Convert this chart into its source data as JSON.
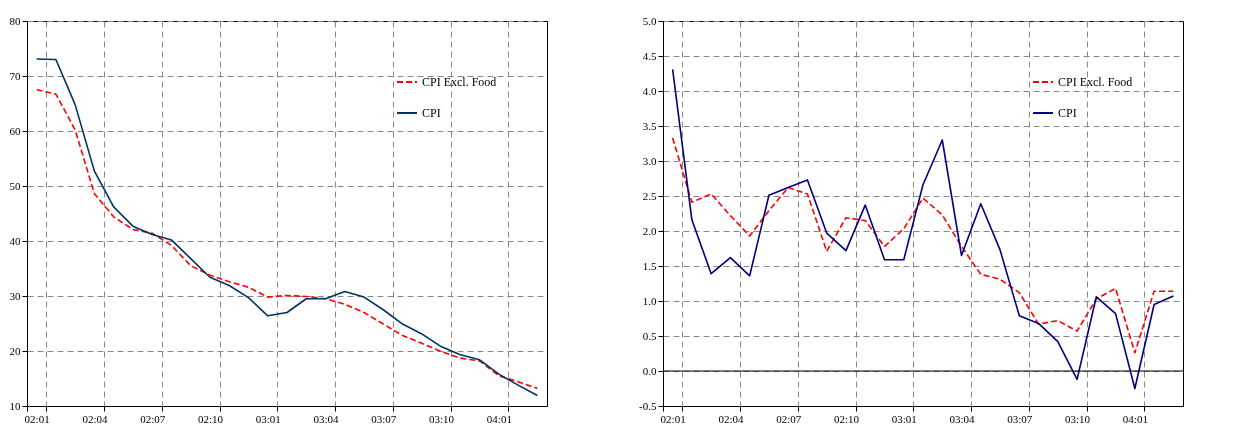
{
  "chart_data": [
    {
      "type": "line",
      "categories": [
        "02:01",
        null,
        null,
        "02:04",
        null,
        null,
        "02:07",
        null,
        null,
        "02:10",
        null,
        null,
        "03:01",
        null,
        null,
        "03:04",
        null,
        null,
        "03:07",
        null,
        null,
        "03:10",
        null,
        null,
        "04:01",
        null,
        null
      ],
      "ylim": [
        10,
        80
      ],
      "yticks": [
        10,
        20,
        30,
        40,
        50,
        60,
        70,
        80
      ],
      "grid": true,
      "legend": "top right",
      "series": [
        {
          "name": "CPI Excl. Food",
          "color": "#ff0000",
          "line_style": "dashed",
          "values": [
            67.5,
            66.7,
            60.2,
            48.6,
            44.4,
            42.1,
            41.4,
            39.2,
            35.5,
            33.8,
            32.6,
            31.6,
            29.8,
            30.1,
            29.9,
            29.5,
            28.5,
            27.0,
            24.9,
            22.8,
            21.4,
            19.9,
            18.7,
            18.2,
            15.5,
            14.4,
            13.2
          ]
        },
        {
          "name": "CPI",
          "color": "#003366",
          "line_style": "solid",
          "values": [
            73.1,
            73.0,
            64.8,
            52.7,
            46.2,
            42.7,
            41.2,
            40.2,
            36.8,
            33.4,
            31.9,
            29.7,
            26.4,
            27.0,
            29.5,
            29.5,
            30.8,
            29.8,
            27.5,
            24.9,
            23.1,
            20.8,
            19.3,
            18.4,
            15.8,
            13.8,
            11.9
          ]
        }
      ]
    },
    {
      "type": "line",
      "categories": [
        "02:01",
        null,
        null,
        "02:04",
        null,
        null,
        "02:07",
        null,
        null,
        "02:10",
        null,
        null,
        "03:01",
        null,
        null,
        "03:04",
        null,
        null,
        "03:07",
        null,
        null,
        "03:10",
        null,
        null,
        "04:01",
        null,
        null
      ],
      "ylim": [
        -0.5,
        5.0
      ],
      "yticks": [
        {
          "value": -0.5,
          "label": "-0.5"
        },
        {
          "value": 0,
          "label": "0.0"
        },
        0.5,
        {
          "value": 1,
          "label": "1.0"
        },
        1.5,
        {
          "value": 2,
          "label": "2.0"
        },
        2.5,
        {
          "value": 3,
          "label": "3.0"
        },
        3.5,
        {
          "value": 4,
          "label": "4.0"
        },
        4.5,
        {
          "value": 5,
          "label": "5.0"
        }
      ],
      "grid": true,
      "legend": "top right",
      "ref_lines": [
        {
          "axis": "y",
          "value": 0,
          "label": null,
          "color": "#000000",
          "line_style": "solid"
        }
      ],
      "series": [
        {
          "name": "CPI Excl. Food",
          "color": "#ff0000",
          "line_style": "dashed",
          "values": [
            3.33,
            2.41,
            2.53,
            2.22,
            1.93,
            2.29,
            2.62,
            2.53,
            1.71,
            2.19,
            2.15,
            1.78,
            2.03,
            2.47,
            2.23,
            1.78,
            1.38,
            1.31,
            1.12,
            0.67,
            0.72,
            0.57,
            1.03,
            1.18,
            0.26,
            1.14,
            1.14
          ]
        },
        {
          "name": "CPI",
          "color": "#000080",
          "line_style": "solid",
          "values": [
            4.31,
            2.16,
            1.39,
            1.62,
            1.36,
            2.51,
            2.62,
            2.73,
            1.97,
            1.72,
            2.37,
            1.59,
            1.59,
            2.66,
            3.3,
            1.65,
            2.39,
            1.73,
            0.79,
            0.68,
            0.42,
            -0.12,
            1.06,
            0.82,
            -0.25,
            0.95,
            1.07
          ]
        }
      ]
    }
  ]
}
